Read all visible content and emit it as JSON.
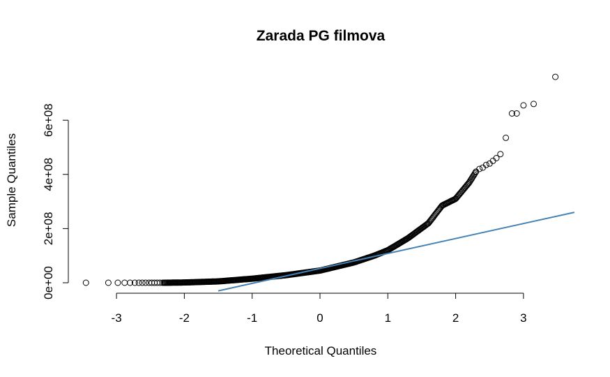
{
  "chart_data": {
    "type": "scatter",
    "subtype": "qq-plot",
    "title": "Zarada PG filmova",
    "xlabel": "Theoretical Quantiles",
    "ylabel": "Sample Quantiles",
    "xlim": [
      -3.6,
      3.8
    ],
    "ylim": [
      -30000000.0,
      770000000.0
    ],
    "x_ticks": [
      -3,
      -2,
      -1,
      0,
      1,
      2,
      3
    ],
    "x_tick_labels": [
      "-3",
      "-2",
      "-1",
      "0",
      "1",
      "2",
      "3"
    ],
    "y_ticks": [
      0,
      200000000,
      400000000,
      600000000
    ],
    "y_tick_labels": [
      "0e+00",
      "2e+08",
      "4e+08",
      "6e+08"
    ],
    "marker": "open-circle",
    "marker_color": "#000000",
    "reference_line": {
      "color": "#4682b4",
      "start": [
        -1.5,
        -30000000
      ],
      "end": [
        3.75,
        260000000
      ]
    },
    "tail_points": [
      [
        -3.45,
        0
      ],
      [
        -3.12,
        0
      ],
      [
        -2.98,
        0
      ],
      [
        -2.88,
        0
      ],
      [
        -2.8,
        0
      ],
      [
        -2.73,
        0
      ],
      [
        -2.67,
        0
      ],
      [
        -2.62,
        0
      ],
      [
        -2.57,
        0
      ],
      [
        -2.52,
        0
      ],
      [
        -2.48,
        0
      ],
      [
        -2.44,
        0
      ],
      [
        -2.4,
        0
      ],
      [
        -2.36,
        0
      ],
      [
        -2.32,
        0
      ],
      [
        2.3,
        410000000
      ],
      [
        2.35,
        420000000
      ],
      [
        2.4,
        425000000
      ],
      [
        2.45,
        435000000
      ],
      [
        2.5,
        440000000
      ],
      [
        2.55,
        450000000
      ],
      [
        2.6,
        460000000
      ],
      [
        2.66,
        475000000
      ],
      [
        2.74,
        535000000
      ],
      [
        2.83,
        625000000
      ],
      [
        2.9,
        625000000
      ],
      [
        3.0,
        655000000
      ],
      [
        3.15,
        660000000
      ],
      [
        3.47,
        760000000
      ]
    ],
    "body_curve": [
      [
        -2.3,
        0
      ],
      [
        -2.0,
        1000000
      ],
      [
        -1.5,
        5000000
      ],
      [
        -1.0,
        15000000
      ],
      [
        -0.5,
        28000000
      ],
      [
        0.0,
        45000000
      ],
      [
        0.5,
        75000000
      ],
      [
        0.8,
        100000000
      ],
      [
        1.0,
        120000000
      ],
      [
        1.3,
        165000000
      ],
      [
        1.6,
        220000000
      ],
      [
        1.8,
        285000000
      ],
      [
        2.0,
        310000000
      ],
      [
        2.2,
        370000000
      ],
      [
        2.3,
        410000000
      ]
    ]
  }
}
